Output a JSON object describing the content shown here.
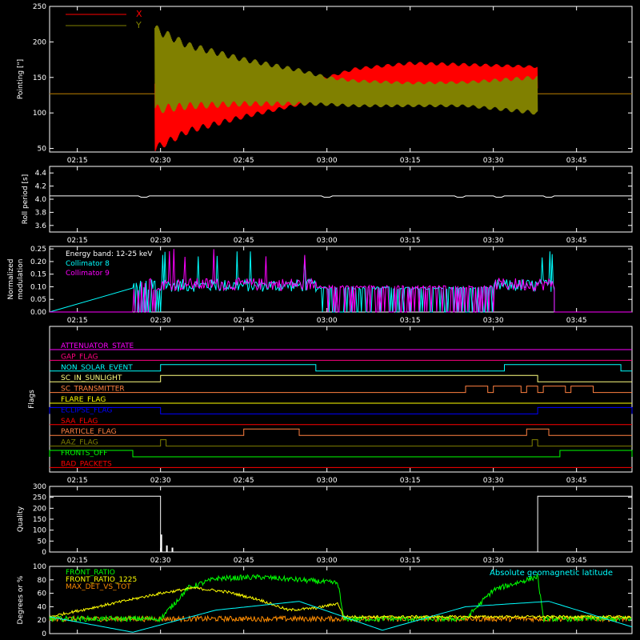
{
  "colors": {
    "background": "#000000",
    "axes": "#ffffff",
    "pointing_x": "#ff0000",
    "pointing_y": "#808000",
    "collimator_8": "#00ffff",
    "collimator_9": "#ff00ff",
    "front_ratio": "#00ff00",
    "front_ratio_1225": "#ffff00",
    "max_det_vs_tot": "#ff8c00",
    "geomag_lat": "#00ffff"
  },
  "time_ticks": [
    "02:15",
    "02:30",
    "02:45",
    "03:00",
    "03:15",
    "03:30",
    "03:45"
  ],
  "chart_data": [
    {
      "type": "line",
      "panel": "pointing",
      "ylabel": "Pointing [\"]",
      "ylim": [
        45,
        250
      ],
      "yticks": [
        "50",
        "100",
        "150",
        "200",
        "250"
      ],
      "xlim": [
        "02:10",
        "03:55"
      ],
      "legend_placement": "top-left",
      "series": [
        {
          "name": "X",
          "baseline": 127,
          "active_from": "02:29",
          "active_to": "03:38",
          "envelope_time": [
            "02:29",
            "02:35",
            "02:45",
            "02:55",
            "03:00",
            "03:05",
            "03:15",
            "03:25",
            "03:38"
          ],
          "envelope_low": [
            50,
            75,
            95,
            112,
            120,
            128,
            132,
            130,
            135
          ],
          "envelope_high": [
            145,
            150,
            148,
            147,
            150,
            162,
            170,
            168,
            165
          ]
        },
        {
          "name": "Y",
          "baseline": 127,
          "active_from": "02:29",
          "active_to": "03:38",
          "envelope_time": [
            "02:29",
            "02:35",
            "02:45",
            "02:55",
            "03:00",
            "03:05",
            "03:15",
            "03:25",
            "03:38"
          ],
          "envelope_low": [
            105,
            110,
            113,
            113,
            112,
            110,
            110,
            110,
            100
          ],
          "envelope_high": [
            218,
            195,
            175,
            160,
            150,
            145,
            142,
            143,
            150
          ]
        }
      ]
    },
    {
      "type": "line",
      "panel": "roll",
      "ylabel": "Roll period [s]",
      "ylim": [
        3.5,
        4.5
      ],
      "yticks": [
        "3.6",
        "3.8",
        "4.0",
        "4.2",
        "4.4"
      ],
      "series": [
        {
          "value": 4.05,
          "dips_at": [
            "02:27",
            "03:00",
            "03:24",
            "03:31",
            "03:40"
          ],
          "dip_value": 4.03
        }
      ]
    },
    {
      "type": "bar",
      "panel": "modulation",
      "ylabel": "Normalized modulation",
      "ylim": [
        0,
        0.26
      ],
      "yticks": [
        "0.00",
        "0.05",
        "0.10",
        "0.15",
        "0.20",
        "0.25"
      ],
      "annotation": "Energy band: 12-25 keV",
      "series": [
        {
          "name": "Collimator 8",
          "active_from": "02:25",
          "active_to": "03:41",
          "typical": 0.095,
          "max": 0.24
        },
        {
          "name": "Collimator 9",
          "active_from": "02:25",
          "active_to": "03:41",
          "typical": 0.1,
          "max": 0.25
        }
      ]
    },
    {
      "type": "line",
      "panel": "flags",
      "ylabel": "Flags",
      "series": [
        {
          "name": "ATTENUATOR_STATE",
          "color": "#ff00ff",
          "on": []
        },
        {
          "name": "GAP_FLAG",
          "color": "#ff0080",
          "on": []
        },
        {
          "name": "NON_SOLAR_EVENT",
          "color": "#00ffff",
          "on": [
            [
              "02:30",
              "02:58"
            ],
            [
              "03:32",
              "03:53"
            ]
          ]
        },
        {
          "name": "SC_IN_SUNLIGHT",
          "color": "#ffff80",
          "on": [
            [
              "02:30",
              "03:38"
            ]
          ]
        },
        {
          "name": "SC_TRANSMITTER",
          "color": "#ff8040",
          "on": [
            [
              "03:25",
              "03:29"
            ],
            [
              "03:30",
              "03:35"
            ],
            [
              "03:36",
              "03:38"
            ],
            [
              "03:39",
              "03:43"
            ],
            [
              "03:44",
              "03:48"
            ]
          ]
        },
        {
          "name": "FLARE_FLAG",
          "color": "#ffff00",
          "on": []
        },
        {
          "name": "ECLIPSE_FLAG",
          "color": "#0000ff",
          "on": [
            [
              "02:10",
              "02:30"
            ],
            [
              "03:38",
              "03:55"
            ]
          ]
        },
        {
          "name": "SAA_FLAG",
          "color": "#ff0000",
          "on": []
        },
        {
          "name": "PARTICLE_FLAG",
          "color": "#ff8040",
          "on": [
            [
              "02:45",
              "02:55"
            ],
            [
              "03:36",
              "03:40"
            ]
          ]
        },
        {
          "name": "AAZ_FLAG",
          "color": "#808000",
          "on": [
            [
              "02:30",
              "02:31"
            ],
            [
              "03:37",
              "03:38"
            ]
          ]
        },
        {
          "name": "FRONTS_OFF",
          "color": "#00ff00",
          "on": [
            [
              "02:10",
              "02:25"
            ],
            [
              "03:42",
              "03:55"
            ]
          ]
        },
        {
          "name": "BAD_PACKETS",
          "color": "#ff0000",
          "on": []
        }
      ]
    },
    {
      "type": "bar",
      "panel": "quality",
      "ylabel": "Quality",
      "ylim": [
        0,
        300
      ],
      "yticks": [
        "0",
        "50",
        "100",
        "150",
        "200",
        "250",
        "300"
      ],
      "series": [
        {
          "segments": [
            [
              "02:10",
              "02:30",
              255
            ],
            [
              "03:38",
              "03:55",
              255
            ]
          ],
          "spikes": [
            [
              "02:30",
              80
            ],
            [
              "02:31",
              30
            ],
            [
              "02:32",
              20
            ]
          ]
        }
      ]
    },
    {
      "type": "line",
      "panel": "ratios",
      "ylabel": "Degrees or %",
      "ylim": [
        0,
        100
      ],
      "yticks": [
        "0",
        "20",
        "40",
        "60",
        "80",
        "100"
      ],
      "annotation": "Absolute geomagnetic latitude",
      "series": [
        {
          "name": "FRONT_RATIO",
          "x": [
            "02:10",
            "02:30",
            "02:35",
            "02:40",
            "02:48",
            "02:55",
            "03:02",
            "03:03",
            "03:25",
            "03:30",
            "03:38",
            "03:39",
            "03:55"
          ],
          "y": [
            22,
            22,
            68,
            82,
            84,
            80,
            75,
            22,
            22,
            65,
            85,
            22,
            22
          ]
        },
        {
          "name": "FRONT_RATIO_1225",
          "x": [
            "02:10",
            "02:30",
            "02:36",
            "02:42",
            "02:48",
            "02:53",
            "02:58",
            "03:02",
            "03:03",
            "03:55"
          ],
          "y": [
            25,
            60,
            68,
            62,
            50,
            35,
            38,
            45,
            25,
            25
          ]
        },
        {
          "name": "MAX_DET_VS_TOT",
          "x": [
            "02:10",
            "03:55"
          ],
          "y": [
            22,
            22
          ]
        },
        {
          "name": "Absolute geomagnetic latitude",
          "x": [
            "02:10",
            "02:25",
            "02:40",
            "02:55",
            "03:10",
            "03:25",
            "03:40",
            "03:55"
          ],
          "y": [
            25,
            2,
            35,
            48,
            5,
            40,
            48,
            10
          ]
        }
      ]
    }
  ]
}
